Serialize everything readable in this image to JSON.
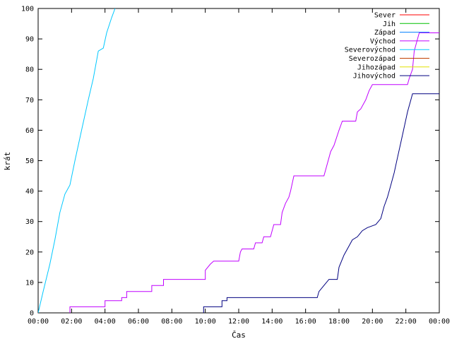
{
  "chart_data": {
    "type": "line",
    "xlabel": "Čas",
    "ylabel": "krát",
    "xlim": [
      0,
      24
    ],
    "ylim": [
      0,
      100
    ],
    "x_ticks": [
      {
        "x": 0,
        "label": "00:00"
      },
      {
        "x": 2,
        "label": "02:00"
      },
      {
        "x": 4,
        "label": "04:00"
      },
      {
        "x": 6,
        "label": "06:00"
      },
      {
        "x": 8,
        "label": "08:00"
      },
      {
        "x": 10,
        "label": "10:00"
      },
      {
        "x": 12,
        "label": "12:00"
      },
      {
        "x": 14,
        "label": "14:00"
      },
      {
        "x": 16,
        "label": "16:00"
      },
      {
        "x": 18,
        "label": "18:00"
      },
      {
        "x": 20,
        "label": "20:00"
      },
      {
        "x": 22,
        "label": "22:00"
      },
      {
        "x": 24,
        "label": "00:00"
      }
    ],
    "y_ticks": [
      0,
      10,
      20,
      30,
      40,
      50,
      60,
      70,
      80,
      90,
      100
    ],
    "grid": false,
    "legend_position": "top-right",
    "series": [
      {
        "name": "Sever",
        "color": "#ff0000",
        "points": []
      },
      {
        "name": "Jih",
        "color": "#00c000",
        "points": []
      },
      {
        "name": "Západ",
        "color": "#0080ff",
        "points": []
      },
      {
        "name": "Východ",
        "color": "#c000ff",
        "points": [
          [
            1.9,
            0
          ],
          [
            1.9,
            2
          ],
          [
            4.0,
            2
          ],
          [
            4.0,
            4
          ],
          [
            5.0,
            4
          ],
          [
            5.0,
            5
          ],
          [
            5.3,
            5
          ],
          [
            5.3,
            7
          ],
          [
            6.8,
            7
          ],
          [
            6.8,
            9
          ],
          [
            7.5,
            9
          ],
          [
            7.5,
            11
          ],
          [
            10.0,
            11
          ],
          [
            10.0,
            14
          ],
          [
            10.3,
            16
          ],
          [
            10.5,
            17
          ],
          [
            12.0,
            17
          ],
          [
            12.1,
            20
          ],
          [
            12.2,
            21
          ],
          [
            12.9,
            21
          ],
          [
            13.0,
            23
          ],
          [
            13.4,
            23
          ],
          [
            13.5,
            25
          ],
          [
            13.9,
            25
          ],
          [
            14.1,
            29
          ],
          [
            14.5,
            29
          ],
          [
            14.6,
            33
          ],
          [
            14.8,
            36
          ],
          [
            15.0,
            38
          ],
          [
            15.1,
            40
          ],
          [
            15.3,
            45
          ],
          [
            17.1,
            45
          ],
          [
            17.2,
            47
          ],
          [
            17.5,
            53
          ],
          [
            17.7,
            55
          ],
          [
            18.0,
            60
          ],
          [
            18.2,
            63
          ],
          [
            19.0,
            63
          ],
          [
            19.1,
            66
          ],
          [
            19.3,
            67
          ],
          [
            19.6,
            70
          ],
          [
            19.8,
            73
          ],
          [
            20.0,
            75
          ],
          [
            22.1,
            75
          ],
          [
            22.2,
            77
          ],
          [
            22.4,
            80
          ],
          [
            22.5,
            86
          ],
          [
            22.7,
            90
          ],
          [
            22.8,
            92
          ],
          [
            24.0,
            92
          ]
        ]
      },
      {
        "name": "Severovýchod",
        "color": "#00c8ff",
        "points": [
          [
            0.0,
            0
          ],
          [
            0.3,
            7
          ],
          [
            0.7,
            16
          ],
          [
            1.0,
            24
          ],
          [
            1.3,
            33
          ],
          [
            1.6,
            39
          ],
          [
            1.9,
            42
          ],
          [
            2.2,
            50
          ],
          [
            2.6,
            60
          ],
          [
            3.0,
            70
          ],
          [
            3.3,
            77
          ],
          [
            3.6,
            86
          ],
          [
            3.9,
            87
          ],
          [
            4.1,
            92
          ],
          [
            4.4,
            97
          ],
          [
            4.6,
            100
          ]
        ]
      },
      {
        "name": "Severozápad",
        "color": "#c04000",
        "points": []
      },
      {
        "name": "Jihozápad",
        "color": "#e0e000",
        "points": []
      },
      {
        "name": "Jihovýchod",
        "color": "#000080",
        "points": [
          [
            9.9,
            0
          ],
          [
            9.9,
            2
          ],
          [
            11.0,
            2
          ],
          [
            11.0,
            4
          ],
          [
            11.3,
            4
          ],
          [
            11.3,
            5
          ],
          [
            16.7,
            5
          ],
          [
            16.8,
            7
          ],
          [
            17.1,
            9
          ],
          [
            17.4,
            11
          ],
          [
            17.9,
            11
          ],
          [
            18.0,
            15
          ],
          [
            18.3,
            19
          ],
          [
            18.6,
            22
          ],
          [
            18.8,
            24
          ],
          [
            19.1,
            25
          ],
          [
            19.4,
            27
          ],
          [
            19.7,
            28
          ],
          [
            20.2,
            29
          ],
          [
            20.5,
            31
          ],
          [
            20.7,
            35
          ],
          [
            20.9,
            38
          ],
          [
            21.1,
            42
          ],
          [
            21.3,
            46
          ],
          [
            21.5,
            51
          ],
          [
            21.7,
            56
          ],
          [
            21.9,
            61
          ],
          [
            22.1,
            66
          ],
          [
            22.3,
            70
          ],
          [
            22.4,
            72
          ],
          [
            24.0,
            72
          ]
        ]
      }
    ]
  }
}
